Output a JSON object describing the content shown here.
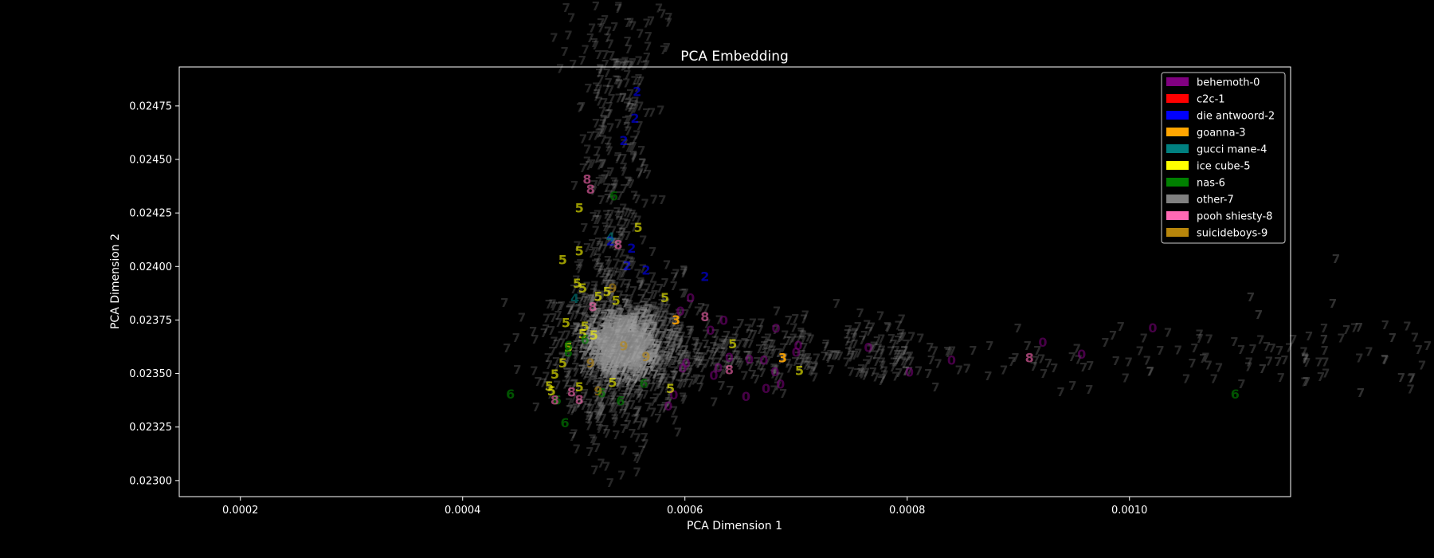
{
  "chart_data": {
    "type": "scatter",
    "title": "PCA Embedding",
    "xlabel": "PCA Dimension 1",
    "ylabel": "PCA Dimension 2",
    "xlim": [
      0.000145,
      0.001145
    ],
    "ylim": [
      0.022925,
      0.024932
    ],
    "x_ticks": [
      0.0002,
      0.0004,
      0.0006,
      0.0008,
      0.001
    ],
    "x_tick_labels": [
      "0.0002",
      "0.0004",
      "0.0006",
      "0.0008",
      "0.0010"
    ],
    "y_ticks": [
      0.023,
      0.02325,
      0.0235,
      0.02375,
      0.024,
      0.02425,
      0.0245,
      0.02475
    ],
    "y_tick_labels": [
      "0.02300",
      "0.02325",
      "0.02350",
      "0.02375",
      "0.02400",
      "0.02425",
      "0.02450",
      "0.02475"
    ],
    "legend_position": "top-right",
    "grid": false,
    "legend": [
      {
        "label": "behemoth-0",
        "color": "#800080"
      },
      {
        "label": "c2c-1",
        "color": "#ff0000"
      },
      {
        "label": "die antwoord-2",
        "color": "#0000ff"
      },
      {
        "label": "goanna-3",
        "color": "#ffa500"
      },
      {
        "label": "gucci mane-4",
        "color": "#008080"
      },
      {
        "label": "ice cube-5",
        "color": "#ffff00"
      },
      {
        "label": "nas-6",
        "color": "#008000"
      },
      {
        "label": "other-7",
        "color": "#808080"
      },
      {
        "label": "pooh shiesty-8",
        "color": "#ff69b4"
      },
      {
        "label": "suicideboys-9",
        "color": "#b8860b"
      }
    ],
    "series": [
      {
        "name": "behemoth-0",
        "marker": "0",
        "color": "#800080",
        "opacity": 0.55,
        "points": [
          [
            0.000682,
            0.023712
          ],
          [
            0.000605,
            0.023854
          ],
          [
            0.000635,
            0.023749
          ],
          [
            0.000596,
            0.023793
          ],
          [
            0.000623,
            0.023703
          ],
          [
            0.000658,
            0.023567
          ],
          [
            0.000598,
            0.023527
          ],
          [
            0.000626,
            0.023493
          ],
          [
            0.000681,
            0.023509
          ],
          [
            0.000702,
            0.023633
          ],
          [
            0.000655,
            0.023394
          ],
          [
            0.000686,
            0.023452
          ],
          [
            0.00064,
            0.023577
          ],
          [
            0.00063,
            0.023528
          ],
          [
            0.000673,
            0.023432
          ],
          [
            0.000671,
            0.023563
          ],
          [
            0.000601,
            0.023551
          ],
          [
            0.00059,
            0.023401
          ],
          [
            0.000585,
            0.023349
          ],
          [
            0.000802,
            0.023508
          ],
          [
            0.00084,
            0.023564
          ],
          [
            0.000922,
            0.023647
          ],
          [
            0.000957,
            0.023592
          ],
          [
            0.001021,
            0.023714
          ],
          [
            0.000765,
            0.023624
          ],
          [
            0.0007,
            0.0236
          ]
        ]
      },
      {
        "name": "die antwoord-2",
        "marker": "2",
        "color": "#0000ff",
        "opacity": 0.6,
        "points": [
          [
            0.000557,
            0.024818
          ],
          [
            0.000555,
            0.024694
          ],
          [
            0.000545,
            0.02459
          ],
          [
            0.000533,
            0.024121
          ],
          [
            0.000552,
            0.024086
          ],
          [
            0.000548,
            0.024005
          ],
          [
            0.000618,
            0.023954
          ],
          [
            0.000565,
            0.023985
          ]
        ]
      },
      {
        "name": "goanna-3",
        "marker": "3",
        "color": "#ffa500",
        "opacity": 0.9,
        "points": [
          [
            0.000688,
            0.023575
          ],
          [
            0.000592,
            0.023752
          ]
        ]
      },
      {
        "name": "gucci mane-4",
        "marker": "4",
        "color": "#008080",
        "opacity": 0.6,
        "points": [
          [
            0.000533,
            0.024138
          ],
          [
            0.000501,
            0.023853
          ]
        ]
      },
      {
        "name": "ice cube-5",
        "marker": "5",
        "color": "#ffff00",
        "opacity": 0.6,
        "points": [
          [
            0.000505,
            0.024275
          ],
          [
            0.000558,
            0.024184
          ],
          [
            0.000505,
            0.024074
          ],
          [
            0.00049,
            0.024032
          ],
          [
            0.000503,
            0.023922
          ],
          [
            0.000508,
            0.0239
          ],
          [
            0.000522,
            0.023862
          ],
          [
            0.00053,
            0.023883
          ],
          [
            0.000538,
            0.023843
          ],
          [
            0.000582,
            0.023855
          ],
          [
            0.000493,
            0.023738
          ],
          [
            0.00051,
            0.023722
          ],
          [
            0.000508,
            0.023687
          ],
          [
            0.000495,
            0.023624
          ],
          [
            0.00049,
            0.02355
          ],
          [
            0.000483,
            0.023499
          ],
          [
            0.000478,
            0.023442
          ],
          [
            0.000505,
            0.023439
          ],
          [
            0.000587,
            0.023431
          ],
          [
            0.000643,
            0.02364
          ],
          [
            0.000703,
            0.023515
          ],
          [
            0.000518,
            0.02368
          ],
          [
            0.000535,
            0.02346
          ],
          [
            0.00048,
            0.02342
          ]
        ]
      },
      {
        "name": "nas-6",
        "marker": "6",
        "color": "#008000",
        "opacity": 0.65,
        "points": [
          [
            0.000536,
            0.024331
          ],
          [
            0.000443,
            0.023406
          ],
          [
            0.001095,
            0.023405
          ],
          [
            0.000492,
            0.023271
          ],
          [
            0.000485,
            0.023377
          ],
          [
            0.000542,
            0.023373
          ],
          [
            0.000563,
            0.023455
          ],
          [
            0.000495,
            0.023632
          ],
          [
            0.00051,
            0.02366
          ],
          [
            0.000525,
            0.02341
          ],
          [
            0.000495,
            0.0236
          ]
        ]
      },
      {
        "name": "pooh shiesty-8",
        "marker": "8",
        "color": "#ff69b4",
        "opacity": 0.6,
        "points": [
          [
            0.000512,
            0.024409
          ],
          [
            0.000515,
            0.024362
          ],
          [
            0.00054,
            0.024103
          ],
          [
            0.000618,
            0.023767
          ],
          [
            0.00064,
            0.023518
          ],
          [
            0.00091,
            0.023574
          ],
          [
            0.000483,
            0.023378
          ],
          [
            0.000505,
            0.02338
          ],
          [
            0.000498,
            0.023415
          ],
          [
            0.000517,
            0.023814
          ]
        ]
      },
      {
        "name": "suicideboys-9",
        "marker": "9",
        "color": "#b8860b",
        "opacity": 0.6,
        "points": [
          [
            0.000535,
            0.0239
          ],
          [
            0.000515,
            0.02355
          ],
          [
            0.000545,
            0.02363
          ],
          [
            0.000565,
            0.02358
          ],
          [
            0.000522,
            0.02342
          ]
        ]
      }
    ],
    "other_series": {
      "name": "other-7",
      "marker": "7",
      "color": "#808080",
      "opacity": 0.32,
      "core_count": 900,
      "core_center": [
        0.000545,
        0.023615
      ],
      "halo_count": 650,
      "arm_count": 260,
      "tail_count": 110
    }
  }
}
